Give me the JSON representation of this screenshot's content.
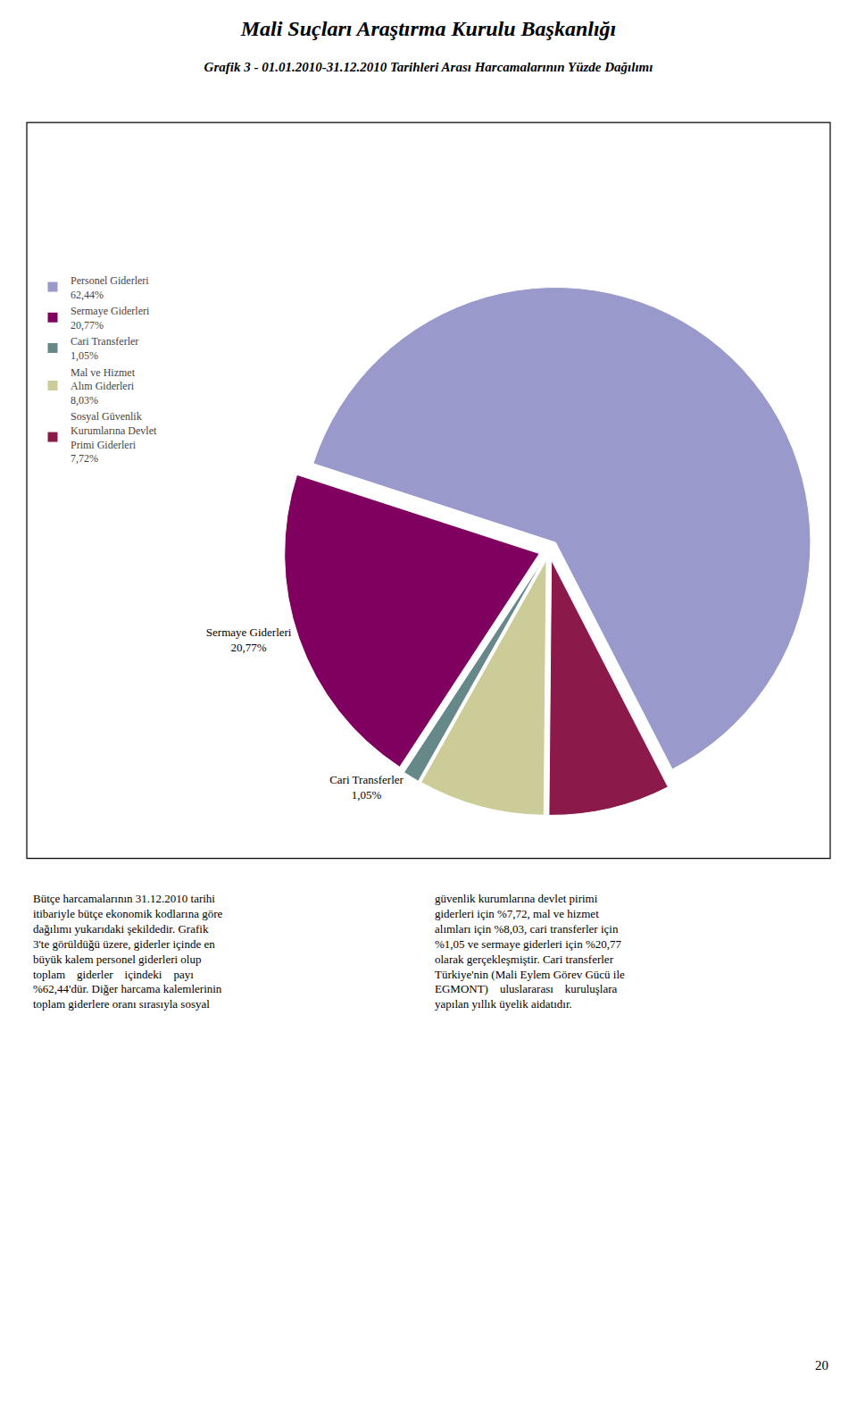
{
  "chart_data": {
    "type": "pie",
    "title": "Mali Suçları Araştırma Kurulu Başkanlığı",
    "subtitle": "Grafik 3 - 01.01.2010-31.12.2010 Tarihleri Arası Harcamalarının Yüzde Dağılımı",
    "categories": [
      "Personel Giderleri",
      "Sermaye Giderleri",
      "Cari Transferler",
      "Mal ve Hizmet\nAlım Giderleri",
      "Sosyal Güvenlik\nKurumlarına Devlet\nPrimi Giderleri"
    ],
    "values": [
      62.44,
      20.77,
      1.05,
      8.03,
      7.72
    ],
    "value_labels": [
      "62,44%",
      "20,77%",
      "1,05%",
      "8,03%",
      "7,72%"
    ],
    "colors": [
      "#9999CC",
      "#800060",
      "#668888",
      "#CCCC99",
      "#8B1A4A"
    ],
    "legend": "left",
    "annotations": [
      {
        "text": "Sermaye Giderleri\n20,77%",
        "category": "Sermaye Giderleri"
      },
      {
        "text": "Cari Transferler\n1,05%",
        "category": "Cari Transferler"
      },
      {
        "text": "Bütçe harcamalarının 31.12.2010 tarihi\nitibariyle bütçe ekonomik kodlarına göre\ndağılımı yukarıdaki şekildedir. Grafik\n3'te görüldüğü üzere, giderler içinde en\nbüyük kalem personel giderleri olup\ntoplam    giderler    içindeki    payı\n%62,44'dür. Diğer harcama kalemlerinin\ntoplam giderlere oranı sırasıyla sosyal"
      },
      {
        "text": "güvenlik kurumlarına devlet pirimi\ngiderleri için %7,72, mal ve hizmet\nalımları için %8,03, cari transferler için\n%1,05 ve sermaye giderleri için %20,77\nolarak gerçekleşmiştir. Cari transferler\nTürkiye'nin (Mali Eylem Görev Gücü ile\nEGMONT)    uluslararası    kuruluşlara\nyapılan yıllık üyelik aidatıdır."
      },
      {
        "text": "20"
      }
    ]
  }
}
